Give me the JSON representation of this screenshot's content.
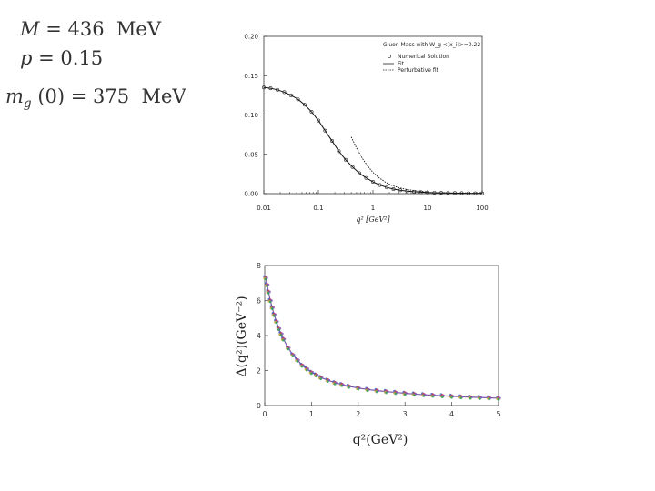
{
  "equations": {
    "mass": {
      "lhs": "M",
      "op": " = ",
      "value": "436",
      "unit": "MeV"
    },
    "power": {
      "lhs": "p",
      "op": " = ",
      "value": "0.15"
    },
    "gluon_mass": {
      "lhs": "m",
      "sub": "g",
      "arg": " (0)",
      "op": " = ",
      "value": "375",
      "unit": "MeV"
    }
  },
  "chart_data": [
    {
      "type": "line",
      "title": "",
      "xlabel": "q² [GeV²]",
      "ylabel": "",
      "xscale": "log",
      "xlim": [
        0.01,
        100
      ],
      "ylim": [
        0,
        0.2
      ],
      "xticks": [
        "0.01",
        "0.1",
        "1",
        "10",
        "100"
      ],
      "yticks": [
        "0.00",
        "0.05",
        "0.10",
        "0.15",
        "0.20"
      ],
      "legend_title": "Gluon Mass with W_g <[x_i]>=0.22",
      "legend_position": "top-right",
      "series": [
        {
          "name": "Numerical Solution",
          "style": "open-circles",
          "x": [
            0.01,
            0.0133,
            0.0178,
            0.0237,
            0.0316,
            0.0422,
            0.0562,
            0.075,
            0.1,
            0.133,
            0.178,
            0.237,
            0.316,
            0.422,
            0.562,
            0.75,
            1.0,
            1.33,
            1.78,
            2.37,
            3.16,
            4.22,
            5.62,
            7.5,
            10,
            13.3,
            17.8,
            23.7,
            31.6,
            42.2,
            56.2,
            75,
            100
          ],
          "y": [
            0.135,
            0.134,
            0.132,
            0.129,
            0.125,
            0.12,
            0.113,
            0.104,
            0.093,
            0.08,
            0.067,
            0.054,
            0.043,
            0.034,
            0.026,
            0.02,
            0.015,
            0.011,
            0.008,
            0.0058,
            0.0043,
            0.0032,
            0.0024,
            0.0019,
            0.0015,
            0.0012,
            0.001,
            0.0008,
            0.0007,
            0.0006,
            0.0005,
            0.0004,
            0.0004
          ]
        },
        {
          "name": "Fit",
          "style": "solid",
          "x": [
            0.01,
            0.0133,
            0.0178,
            0.0237,
            0.0316,
            0.0422,
            0.0562,
            0.075,
            0.1,
            0.133,
            0.178,
            0.237,
            0.316,
            0.422,
            0.562,
            0.75,
            1.0,
            1.33,
            1.78,
            2.37,
            3.16,
            4.22,
            5.62,
            7.5,
            10,
            13.3,
            17.8,
            23.7,
            31.6,
            42.2,
            56.2,
            75,
            100
          ],
          "y": [
            0.135,
            0.134,
            0.132,
            0.129,
            0.125,
            0.12,
            0.113,
            0.104,
            0.093,
            0.08,
            0.067,
            0.054,
            0.043,
            0.034,
            0.026,
            0.02,
            0.015,
            0.011,
            0.008,
            0.0058,
            0.0043,
            0.0032,
            0.0024,
            0.0019,
            0.0015,
            0.0012,
            0.001,
            0.0008,
            0.0007,
            0.0006,
            0.0005,
            0.0004,
            0.0004
          ]
        },
        {
          "name": "Perturbative fit",
          "style": "dashed",
          "x": [
            0.4,
            0.5,
            0.65,
            0.8,
            1.0,
            1.3,
            1.7,
            2.2,
            3.0,
            4.0,
            5.5,
            7.5,
            10
          ],
          "y": [
            0.072,
            0.058,
            0.044,
            0.035,
            0.027,
            0.02,
            0.0145,
            0.0105,
            0.0075,
            0.0055,
            0.004,
            0.003,
            0.0022
          ]
        }
      ]
    },
    {
      "type": "scatter",
      "title": "",
      "xlabel": "q²(GeV²)",
      "ylabel": "Δ(q²)(GeV⁻²)",
      "xlim": [
        0,
        5
      ],
      "ylim": [
        0,
        8
      ],
      "xticks": [
        "0",
        "1",
        "2",
        "3",
        "4",
        "5"
      ],
      "yticks": [
        "0",
        "2",
        "4",
        "6",
        "8"
      ],
      "series": [
        {
          "style": "colored-dots",
          "colors": [
            "#3a58c8",
            "#d23a3a",
            "#8a52b8",
            "#c9a23a",
            "#2fa05a"
          ],
          "x": [
            0.02,
            0.05,
            0.08,
            0.12,
            0.16,
            0.2,
            0.25,
            0.3,
            0.35,
            0.4,
            0.5,
            0.6,
            0.7,
            0.8,
            0.9,
            1.0,
            1.1,
            1.2,
            1.35,
            1.5,
            1.65,
            1.8,
            2.0,
            2.2,
            2.4,
            2.6,
            2.8,
            3.0,
            3.2,
            3.4,
            3.6,
            3.8,
            4.0,
            4.2,
            4.4,
            4.6,
            4.8,
            5.0
          ],
          "y": [
            7.3,
            6.9,
            6.5,
            6.0,
            5.6,
            5.2,
            4.8,
            4.4,
            4.1,
            3.8,
            3.3,
            2.9,
            2.6,
            2.3,
            2.1,
            1.9,
            1.75,
            1.6,
            1.45,
            1.3,
            1.2,
            1.1,
            1.0,
            0.92,
            0.85,
            0.8,
            0.75,
            0.7,
            0.66,
            0.62,
            0.59,
            0.56,
            0.53,
            0.5,
            0.48,
            0.46,
            0.44,
            0.42
          ]
        }
      ]
    }
  ]
}
